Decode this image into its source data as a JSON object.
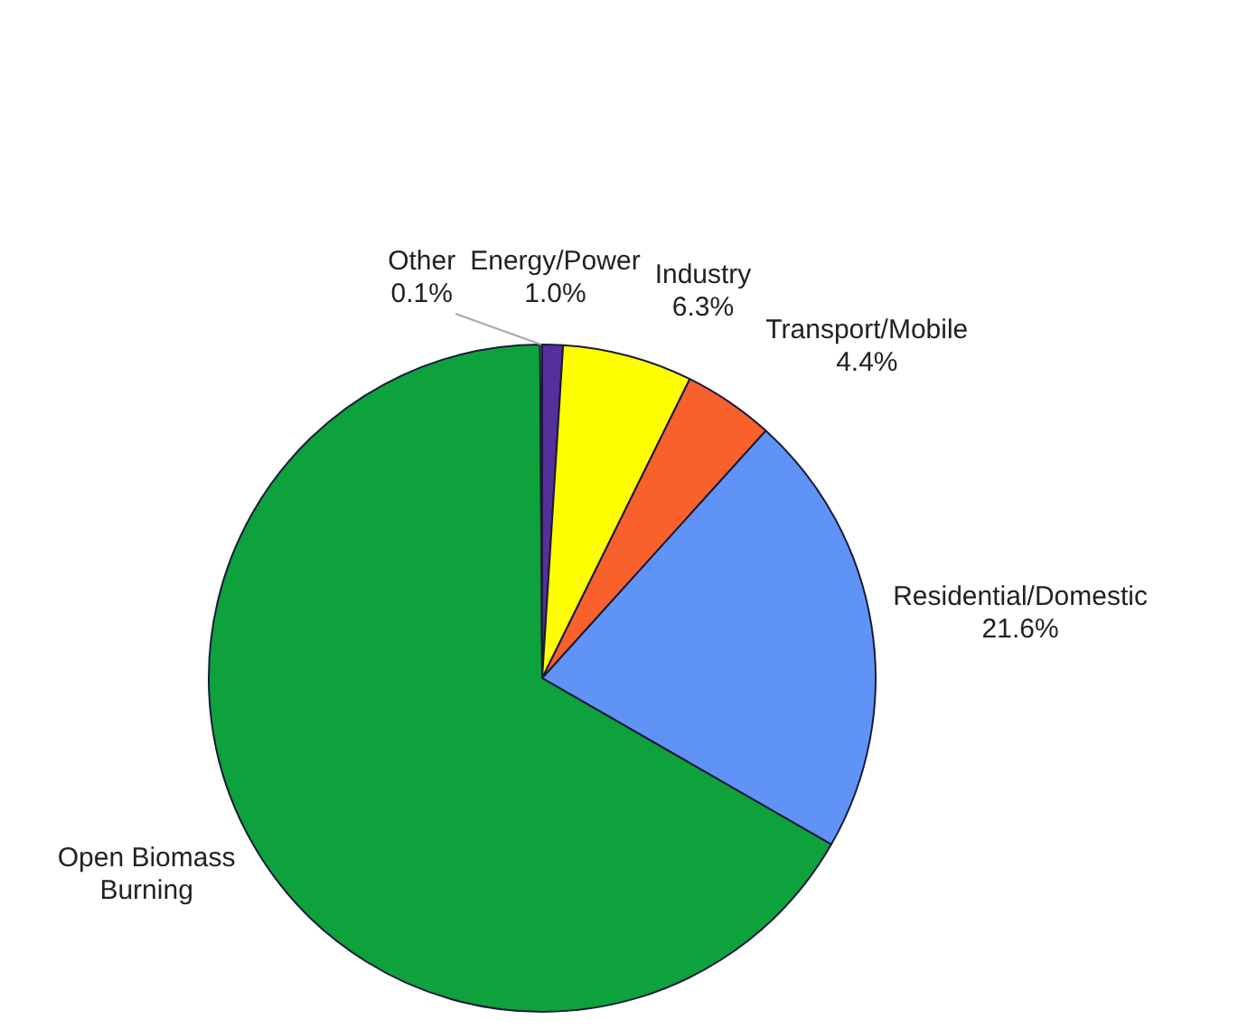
{
  "chart_data": {
    "type": "pie",
    "categories": [
      "Energy/Power",
      "Industry",
      "Transport/Mobile",
      "Residential/Domestic",
      "Open Biomass Burning",
      "Other"
    ],
    "values": [
      1.0,
      6.3,
      4.4,
      21.6,
      66.6,
      0.1
    ],
    "colors": [
      "#55309a",
      "#ffff00",
      "#f8602c",
      "#6093f6",
      "#0da23c",
      "#d9d9d9"
    ],
    "value_labels": [
      "1.0%",
      "6.3%",
      "4.4%",
      "21.6%",
      null,
      "0.1%"
    ],
    "legend": false
  }
}
